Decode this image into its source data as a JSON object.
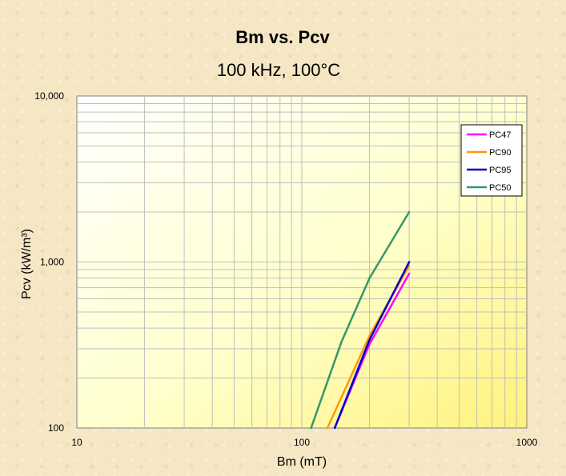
{
  "chart_data": {
    "type": "line",
    "title": "Bm vs. Pcv",
    "subtitle": "100 kHz, 100°C",
    "xlabel": "Bm (mT)",
    "ylabel": "Pcv (kW/m³)",
    "x_scale": "log",
    "y_scale": "log",
    "xlim": [
      10,
      1000
    ],
    "ylim": [
      100,
      10000
    ],
    "x_ticks": [
      10,
      100,
      1000
    ],
    "x_tick_labels": [
      "10",
      "100",
      "1000"
    ],
    "y_ticks": [
      100,
      1000,
      10000
    ],
    "y_tick_labels": [
      "100",
      "1,000",
      "10,000"
    ],
    "grid": true,
    "legend_position": "top-right",
    "series": [
      {
        "name": "PC47",
        "color": "#ff00ff",
        "x": [
          140,
          200,
          300
        ],
        "y": [
          100,
          320,
          850
        ]
      },
      {
        "name": "PC90",
        "color": "#ff9900",
        "x": [
          130,
          200,
          300
        ],
        "y": [
          100,
          360,
          950
        ]
      },
      {
        "name": "PC95",
        "color": "#0000cc",
        "x": [
          140,
          200,
          300
        ],
        "y": [
          100,
          340,
          1000
        ]
      },
      {
        "name": "PC50",
        "color": "#339966",
        "x": [
          110,
          150,
          200,
          300
        ],
        "y": [
          100,
          330,
          800,
          2000
        ]
      }
    ]
  }
}
